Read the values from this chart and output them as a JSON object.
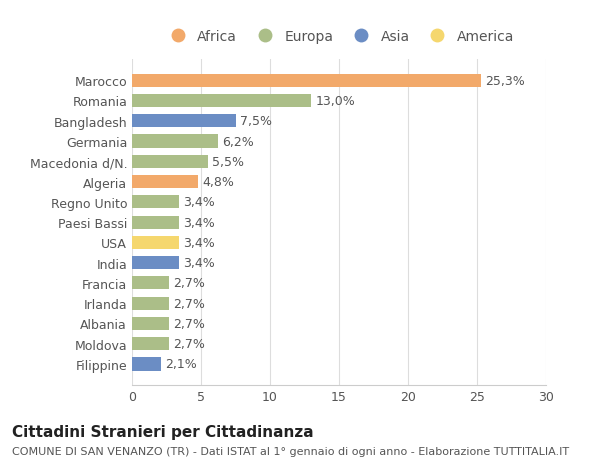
{
  "countries": [
    "Marocco",
    "Romania",
    "Bangladesh",
    "Germania",
    "Macedonia d/N.",
    "Algeria",
    "Regno Unito",
    "Paesi Bassi",
    "USA",
    "India",
    "Francia",
    "Irlanda",
    "Albania",
    "Moldova",
    "Filippine"
  ],
  "values": [
    25.3,
    13.0,
    7.5,
    6.2,
    5.5,
    4.8,
    3.4,
    3.4,
    3.4,
    3.4,
    2.7,
    2.7,
    2.7,
    2.7,
    2.1
  ],
  "labels": [
    "25,3%",
    "13,0%",
    "7,5%",
    "6,2%",
    "5,5%",
    "4,8%",
    "3,4%",
    "3,4%",
    "3,4%",
    "3,4%",
    "2,7%",
    "2,7%",
    "2,7%",
    "2,7%",
    "2,1%"
  ],
  "continents": [
    "Africa",
    "Europa",
    "Asia",
    "Europa",
    "Europa",
    "Africa",
    "Europa",
    "Europa",
    "America",
    "Asia",
    "Europa",
    "Europa",
    "Europa",
    "Europa",
    "Asia"
  ],
  "colors": {
    "Africa": "#F2A96A",
    "Europa": "#ABBE88",
    "Asia": "#6B8DC4",
    "America": "#F5D76E"
  },
  "legend_order": [
    "Africa",
    "Europa",
    "Asia",
    "America"
  ],
  "title": "Cittadini Stranieri per Cittadinanza",
  "subtitle": "COMUNE DI SAN VENANZO (TR) - Dati ISTAT al 1° gennaio di ogni anno - Elaborazione TUTTITALIA.IT",
  "xlim": [
    0,
    30
  ],
  "xticks": [
    0,
    5,
    10,
    15,
    20,
    25,
    30
  ],
  "background_color": "#ffffff",
  "bar_height": 0.65,
  "title_fontsize": 11,
  "subtitle_fontsize": 8,
  "label_fontsize": 9,
  "tick_fontsize": 9,
  "legend_fontsize": 10,
  "text_color": "#555555",
  "title_color": "#222222",
  "grid_color": "#dddddd",
  "spine_color": "#cccccc"
}
